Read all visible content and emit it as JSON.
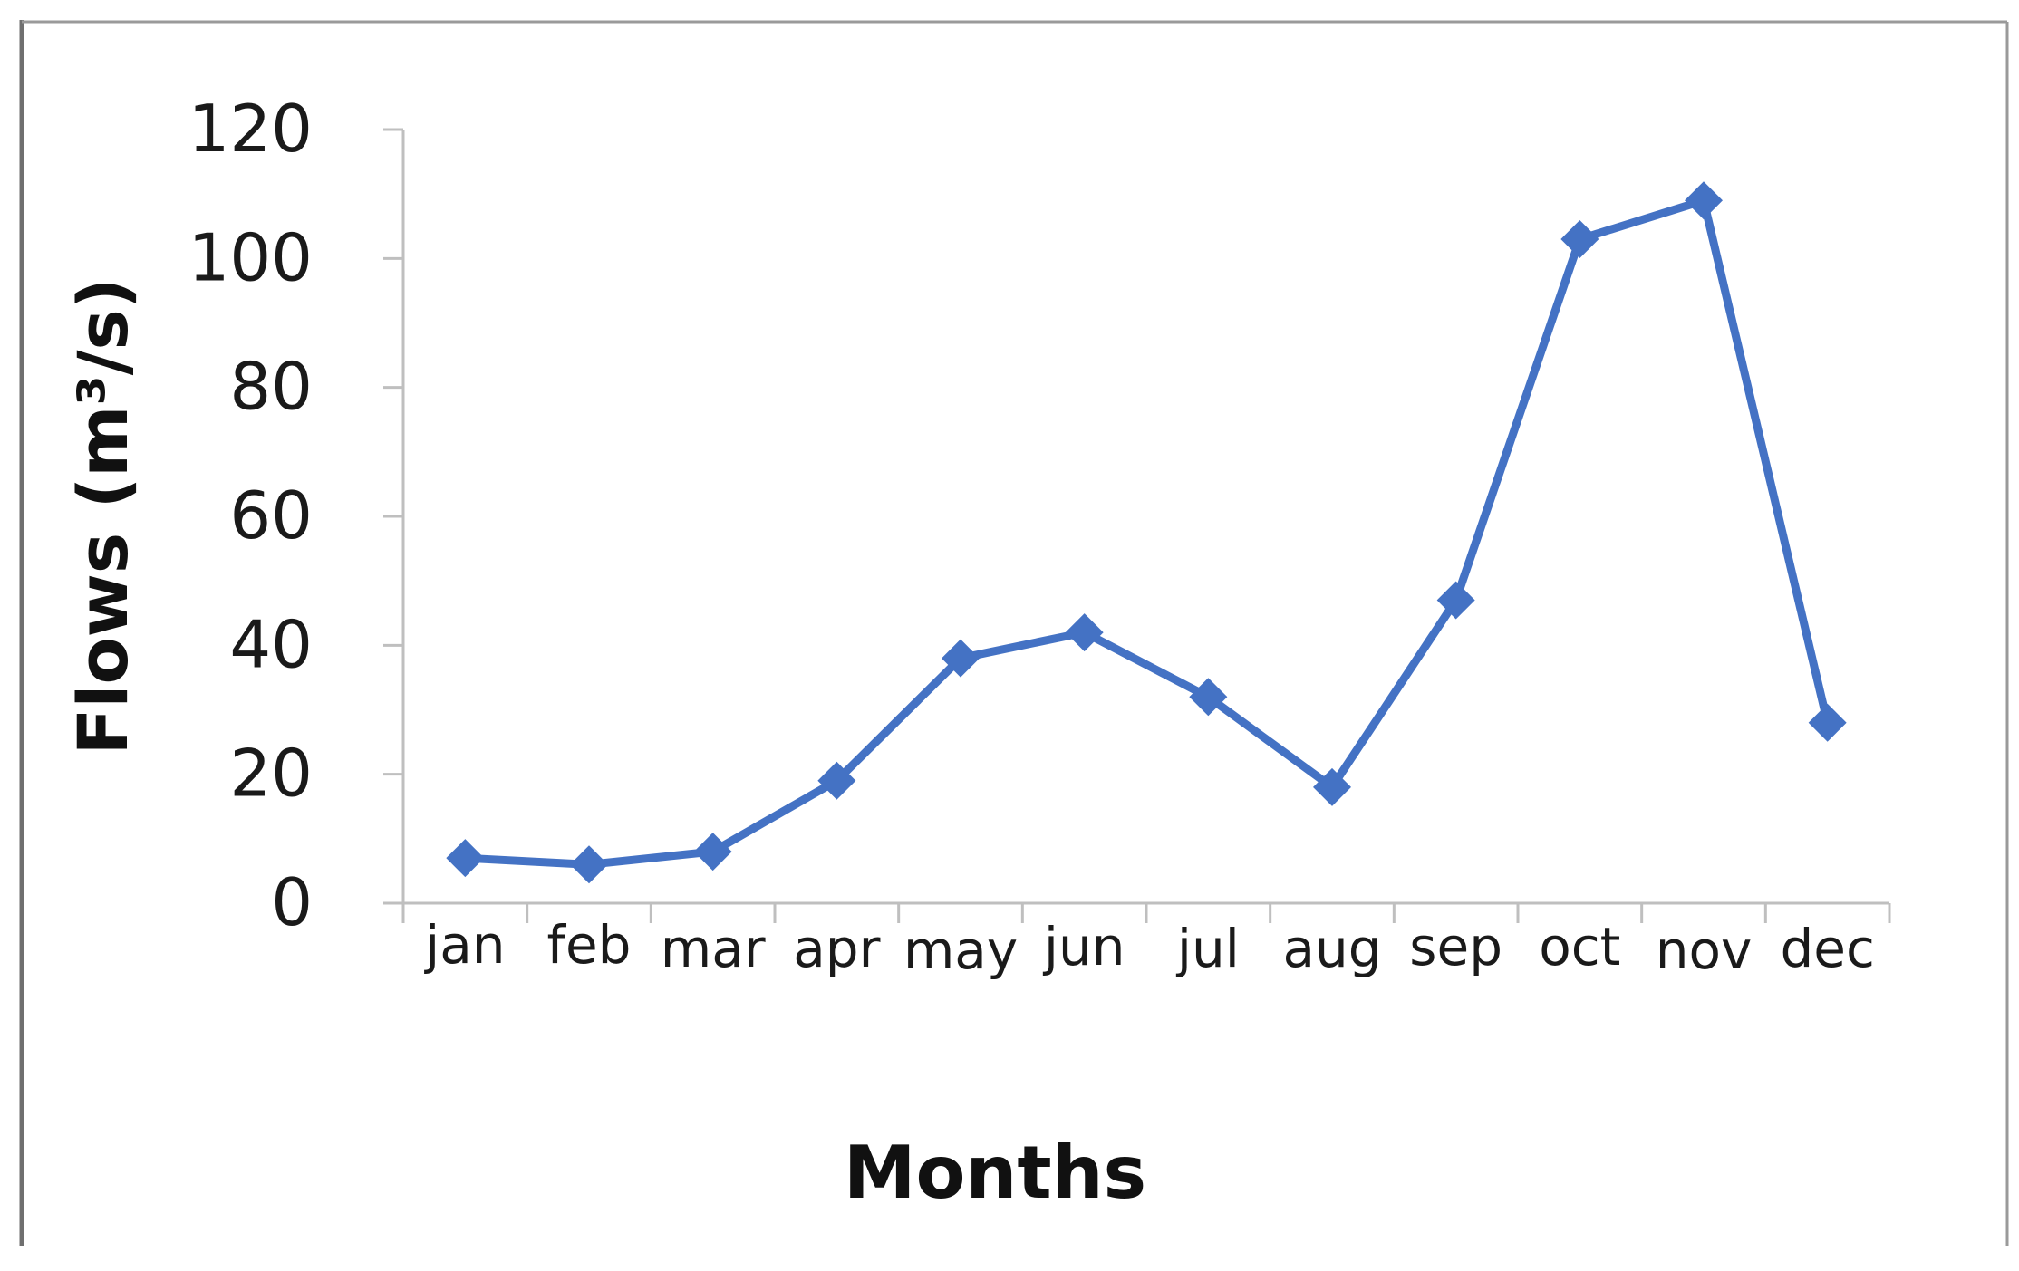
{
  "chart_data": {
    "type": "line",
    "title": "",
    "xlabel": "Months",
    "ylabel": "Flows (m³/s)",
    "categories": [
      "jan",
      "feb",
      "mar",
      "apr",
      "may",
      "jun",
      "jul",
      "aug",
      "sep",
      "oct",
      "nov",
      "dec"
    ],
    "series": [
      {
        "values": [
          7,
          6,
          8,
          19,
          38,
          42,
          32,
          18,
          47,
          103,
          109,
          28
        ]
      }
    ],
    "ylim": [
      0,
      120
    ],
    "yticks": [
      0,
      20,
      40,
      60,
      80,
      100,
      120
    ],
    "grid": false,
    "legend": "none",
    "marker": "diamond"
  },
  "colors": {
    "series_line": "#4472C4",
    "axis": "#BFBFBF",
    "frame": "#8C8C8C",
    "text": "#1a1a1a"
  }
}
